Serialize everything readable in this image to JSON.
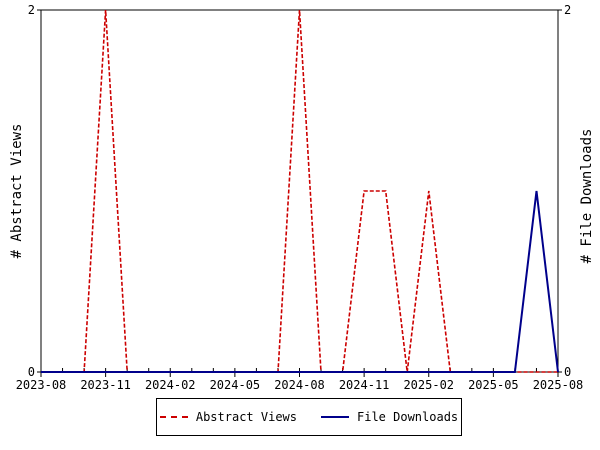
{
  "chart_data": {
    "type": "line",
    "ylabel_left": "# Abstract Views",
    "ylabel_right": "# File Downloads",
    "ylim_left": [
      0,
      2
    ],
    "ylim_right": [
      0,
      2
    ],
    "y_ticks_left": [
      "0",
      "2"
    ],
    "y_ticks_right": [
      "0",
      "2"
    ],
    "xlim": [
      "2023-08",
      "2025-08"
    ],
    "x_tick_labels": [
      "2023-08",
      "2023-11",
      "2024-02",
      "2024-05",
      "2024-08",
      "2024-11",
      "2025-02",
      "2025-05",
      "2025-08"
    ],
    "x": [
      "2023-08",
      "2023-09",
      "2023-10",
      "2023-11",
      "2023-12",
      "2024-01",
      "2024-02",
      "2024-03",
      "2024-04",
      "2024-05",
      "2024-06",
      "2024-07",
      "2024-08",
      "2024-09",
      "2024-10",
      "2024-11",
      "2024-12",
      "2025-01",
      "2025-02",
      "2025-03",
      "2025-04",
      "2025-05",
      "2025-06",
      "2025-07",
      "2025-08"
    ],
    "series": [
      {
        "name": "Abstract Views",
        "axis": "left",
        "color": "#cc0000",
        "dash": true,
        "values": [
          0,
          0,
          0,
          2,
          0,
          0,
          0,
          0,
          0,
          0,
          0,
          0,
          2,
          0,
          0,
          1,
          1,
          0,
          1,
          0,
          0,
          0,
          0,
          0,
          0
        ]
      },
      {
        "name": "File Downloads",
        "axis": "right",
        "color": "#00008b",
        "dash": false,
        "values": [
          0,
          0,
          0,
          0,
          0,
          0,
          0,
          0,
          0,
          0,
          0,
          0,
          0,
          0,
          0,
          0,
          0,
          0,
          0,
          0,
          0,
          0,
          0,
          1,
          0
        ]
      }
    ],
    "grid": false,
    "legend_position": "bottom"
  }
}
